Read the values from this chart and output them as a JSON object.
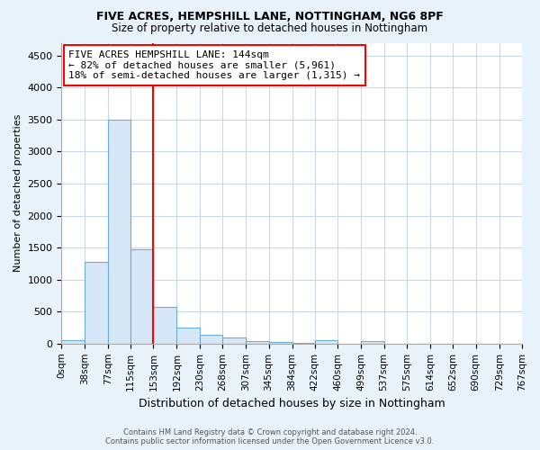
{
  "title1": "FIVE ACRES, HEMPSHILL LANE, NOTTINGHAM, NG6 8PF",
  "title2": "Size of property relative to detached houses in Nottingham",
  "xlabel": "Distribution of detached houses by size in Nottingham",
  "ylabel": "Number of detached properties",
  "bin_labels": [
    "0sqm",
    "38sqm",
    "77sqm",
    "115sqm",
    "153sqm",
    "192sqm",
    "230sqm",
    "268sqm",
    "307sqm",
    "345sqm",
    "384sqm",
    "422sqm",
    "460sqm",
    "499sqm",
    "537sqm",
    "575sqm",
    "614sqm",
    "652sqm",
    "690sqm",
    "729sqm",
    "767sqm"
  ],
  "bin_edges": [
    0,
    38,
    77,
    115,
    153,
    192,
    230,
    268,
    307,
    345,
    384,
    422,
    460,
    499,
    537,
    575,
    614,
    652,
    690,
    729,
    767
  ],
  "bar_heights": [
    50,
    1270,
    3500,
    1480,
    575,
    250,
    140,
    90,
    45,
    25,
    15,
    50,
    0,
    40,
    0,
    0,
    0,
    0,
    0,
    0
  ],
  "bar_color": "#d6e8f7",
  "bar_edge_color": "#6aaed6",
  "red_line_x": 153,
  "ylim": [
    0,
    4700
  ],
  "yticks": [
    0,
    500,
    1000,
    1500,
    2000,
    2500,
    3000,
    3500,
    4000,
    4500
  ],
  "annotation_title": "FIVE ACRES HEMPSHILL LANE: 144sqm",
  "annotation_line1": "← 82% of detached houses are smaller (5,961)",
  "annotation_line2": "18% of semi-detached houses are larger (1,315) →",
  "footer1": "Contains HM Land Registry data © Crown copyright and database right 2024.",
  "footer2": "Contains public sector information licensed under the Open Government Licence v3.0.",
  "fig_bg_color": "#e8f2fb",
  "plot_bg_color": "#ffffff",
  "grid_color": "#c8d8e8"
}
